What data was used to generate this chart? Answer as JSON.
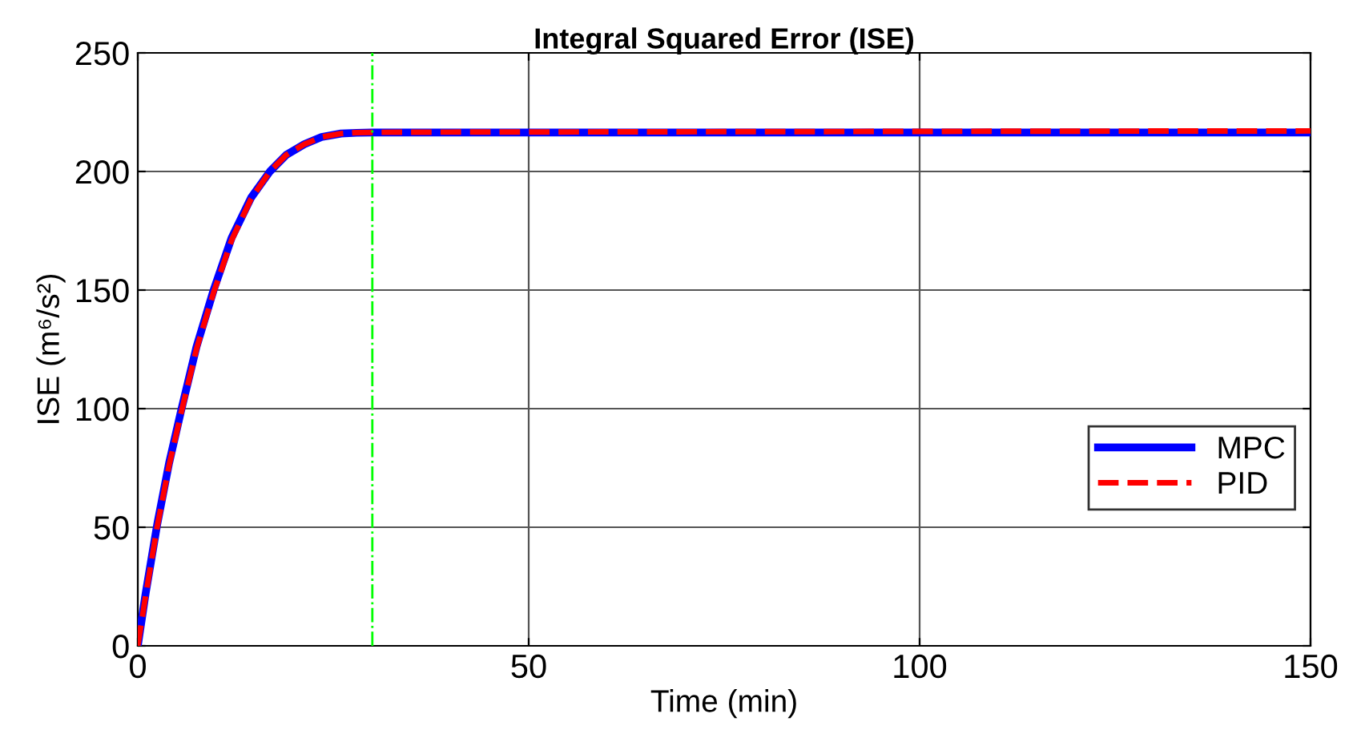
{
  "chart_data": {
    "type": "line",
    "title": "Integral Squared Error (ISE)",
    "xlabel": "Time (min)",
    "ylabel": "ISE (m⁶/s²)",
    "xlim": [
      0,
      150
    ],
    "xticks": [
      0,
      50,
      100,
      150
    ],
    "ylim": [
      0,
      250
    ],
    "yticks": [
      0,
      50,
      100,
      150,
      200,
      250
    ],
    "grid": true,
    "legend": "right",
    "ref_lines": [
      {
        "axis": "x",
        "value": 30,
        "color": "#00ff00",
        "line_style": "dashdot"
      }
    ],
    "series": [
      {
        "name": "MPC",
        "color": "#0000ff",
        "line_style": "solid",
        "x": [
          0,
          1,
          2.5,
          4,
          5.6,
          7.5,
          9.7,
          12,
          14.5,
          16.9,
          19,
          21.3,
          23.5,
          26,
          28,
          30,
          40,
          60,
          80,
          100,
          120,
          150
        ],
        "values": [
          0,
          22,
          51.5,
          77,
          100,
          126,
          150,
          172,
          189,
          200,
          207,
          211.5,
          214.5,
          216,
          216.3,
          216.4,
          216.4,
          216.4,
          216.4,
          216.4,
          216.4,
          216.4
        ]
      },
      {
        "name": "PID",
        "color": "#ff0000",
        "line_style": "dashed",
        "x": [
          0,
          1,
          2.5,
          4,
          5.6,
          7.5,
          9.7,
          12,
          14.5,
          16.9,
          19,
          21.3,
          23.5,
          26,
          28,
          30,
          40,
          60,
          80,
          100,
          120,
          150
        ],
        "values": [
          0,
          21,
          50.5,
          76,
          99,
          125,
          149,
          171,
          188.5,
          200,
          207,
          211.5,
          214.5,
          216,
          216.4,
          216.5,
          216.6,
          216.7,
          216.8,
          216.9,
          217,
          217.1
        ]
      }
    ]
  }
}
